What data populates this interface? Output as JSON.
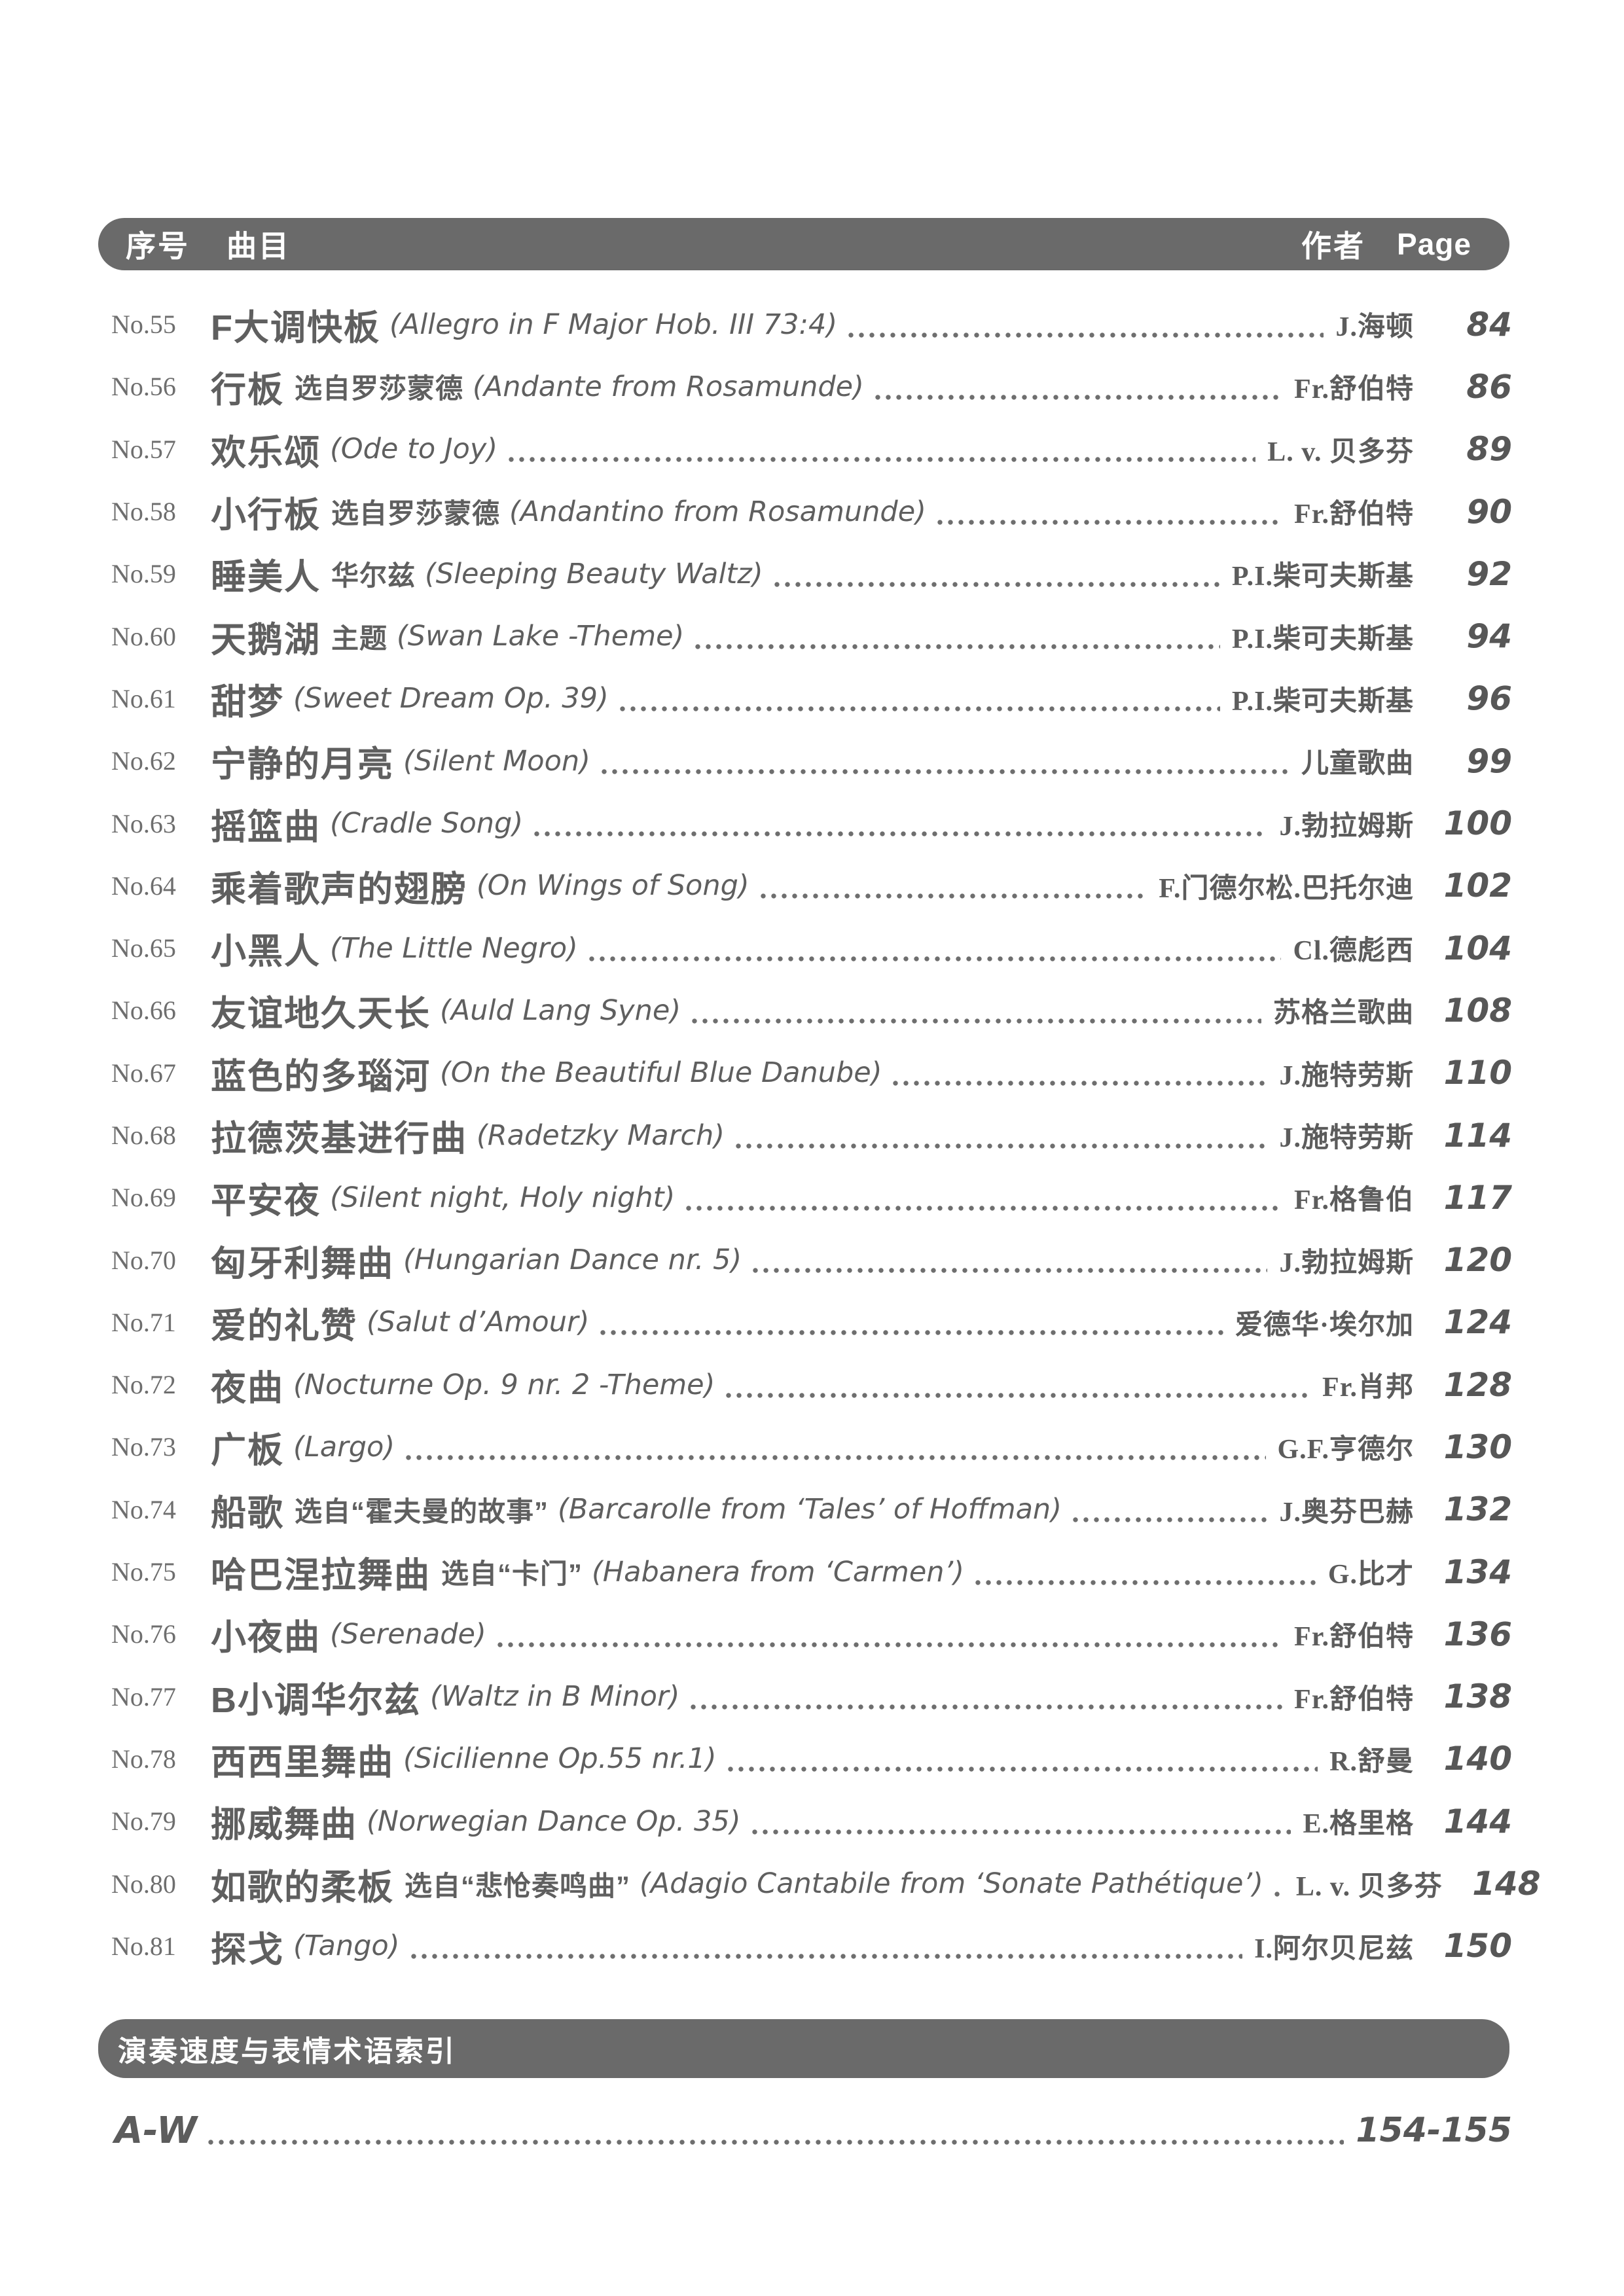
{
  "colors": {
    "bar_bg": "#6a6a6a",
    "bar_text": "#ffffff",
    "body_text": "#5f5f5f",
    "page_bg": "#ffffff"
  },
  "header": {
    "col_no": "序号",
    "col_title": "曲目",
    "col_author": "作者",
    "col_page": "Page"
  },
  "toc": {
    "rows": [
      {
        "no": "No.55",
        "zh": "F大调快板",
        "sub": "",
        "en": "(Allegro in F Major Hob. III 73:4)",
        "author": "J.海顿",
        "page": "84"
      },
      {
        "no": "No.56",
        "zh": "行板",
        "sub": "选自罗莎蒙德",
        "en": "(Andante from Rosamunde)",
        "author": "Fr.舒伯特",
        "page": "86"
      },
      {
        "no": "No.57",
        "zh": "欢乐颂",
        "sub": "",
        "en": "(Ode to Joy)",
        "author": "L. v. 贝多芬",
        "page": "89"
      },
      {
        "no": "No.58",
        "zh": "小行板",
        "sub": "选自罗莎蒙德",
        "en": "(Andantino from Rosamunde)",
        "author": "Fr.舒伯特",
        "page": "90"
      },
      {
        "no": "No.59",
        "zh": "睡美人",
        "sub": "华尔兹",
        "en": "(Sleeping Beauty Waltz)",
        "author": "P.I.柴可夫斯基",
        "page": "92"
      },
      {
        "no": "No.60",
        "zh": "天鹅湖",
        "sub": "主题",
        "en": "(Swan Lake -Theme)",
        "author": "P.I.柴可夫斯基",
        "page": "94"
      },
      {
        "no": "No.61",
        "zh": "甜梦",
        "sub": "",
        "en": "(Sweet Dream Op. 39)",
        "author": "P.I.柴可夫斯基",
        "page": "96"
      },
      {
        "no": "No.62",
        "zh": "宁静的月亮",
        "sub": "",
        "en": "(Silent Moon)",
        "author": "儿童歌曲",
        "page": "99"
      },
      {
        "no": "No.63",
        "zh": "摇篮曲",
        "sub": "",
        "en": "(Cradle Song)",
        "author": "J.勃拉姆斯",
        "page": "100"
      },
      {
        "no": "No.64",
        "zh": "乘着歌声的翅膀",
        "sub": "",
        "en": "(On Wings of Song)",
        "author": "F.门德尔松.巴托尔迪",
        "page": "102"
      },
      {
        "no": "No.65",
        "zh": "小黑人",
        "sub": "",
        "en": "(The Little Negro)",
        "author": "Cl.德彪西",
        "page": "104"
      },
      {
        "no": "No.66",
        "zh": "友谊地久天长",
        "sub": "",
        "en": "(Auld Lang Syne)",
        "author": "苏格兰歌曲",
        "page": "108"
      },
      {
        "no": "No.67",
        "zh": "蓝色的多瑙河",
        "sub": "",
        "en": "(On the Beautiful Blue Danube)",
        "author": "J.施特劳斯",
        "page": "110"
      },
      {
        "no": "No.68",
        "zh": "拉德茨基进行曲",
        "sub": "",
        "en": "(Radetzky March)",
        "author": "J.施特劳斯",
        "page": "114"
      },
      {
        "no": "No.69",
        "zh": "平安夜",
        "sub": "",
        "en": "(Silent night, Holy night)",
        "author": "Fr.格鲁伯",
        "page": "117"
      },
      {
        "no": "No.70",
        "zh": "匈牙利舞曲",
        "sub": "",
        "en": "(Hungarian Dance nr. 5)",
        "author": "J.勃拉姆斯",
        "page": "120"
      },
      {
        "no": "No.71",
        "zh": "爱的礼赞",
        "sub": "",
        "en": "(Salut d’Amour)",
        "author": "爱德华·埃尔加",
        "page": "124"
      },
      {
        "no": "No.72",
        "zh": "夜曲",
        "sub": "",
        "en": "(Nocturne Op. 9 nr. 2 -Theme)",
        "author": "Fr.肖邦",
        "page": "128"
      },
      {
        "no": "No.73",
        "zh": "广板",
        "sub": "",
        "en": "(Largo)",
        "author": "G.F.亨德尔",
        "page": "130"
      },
      {
        "no": "No.74",
        "zh": "船歌",
        "sub": "选自“霍夫曼的故事”",
        "en": "(Barcarolle from ‘Tales’ of Hoffman)",
        "author": "J.奥芬巴赫",
        "page": "132"
      },
      {
        "no": "No.75",
        "zh": "哈巴涅拉舞曲",
        "sub": "选自“卡门”",
        "en": "(Habanera from ‘Carmen’)",
        "author": "G.比才",
        "page": "134"
      },
      {
        "no": "No.76",
        "zh": "小夜曲",
        "sub": "",
        "en": "(Serenade)",
        "author": "Fr.舒伯特",
        "page": "136"
      },
      {
        "no": "No.77",
        "zh": "B小调华尔兹",
        "sub": "",
        "en": "(Waltz in B Minor)",
        "author": "Fr.舒伯特",
        "page": "138"
      },
      {
        "no": "No.78",
        "zh": "西西里舞曲",
        "sub": "",
        "en": "(Sicilienne Op.55 nr.1)",
        "author": "R.舒曼",
        "page": "140"
      },
      {
        "no": "No.79",
        "zh": "挪威舞曲",
        "sub": "",
        "en": "(Norwegian Dance Op. 35)",
        "author": "E.格里格",
        "page": "144"
      },
      {
        "no": "No.80",
        "zh": "如歌的柔板",
        "sub": "选自“悲怆奏鸣曲”",
        "en": "(Adagio Cantabile from ‘Sonate Pathétique’)",
        "author": "L. v. 贝多芬",
        "page": "148"
      },
      {
        "no": "No.81",
        "zh": "探戈",
        "sub": "",
        "en": "(Tango)",
        "author": "I.阿尔贝尼兹",
        "page": "150"
      }
    ]
  },
  "footer": {
    "index_title": "演奏速度与表情术语索引",
    "range_label": "A-W",
    "range_pages": "154-155"
  }
}
